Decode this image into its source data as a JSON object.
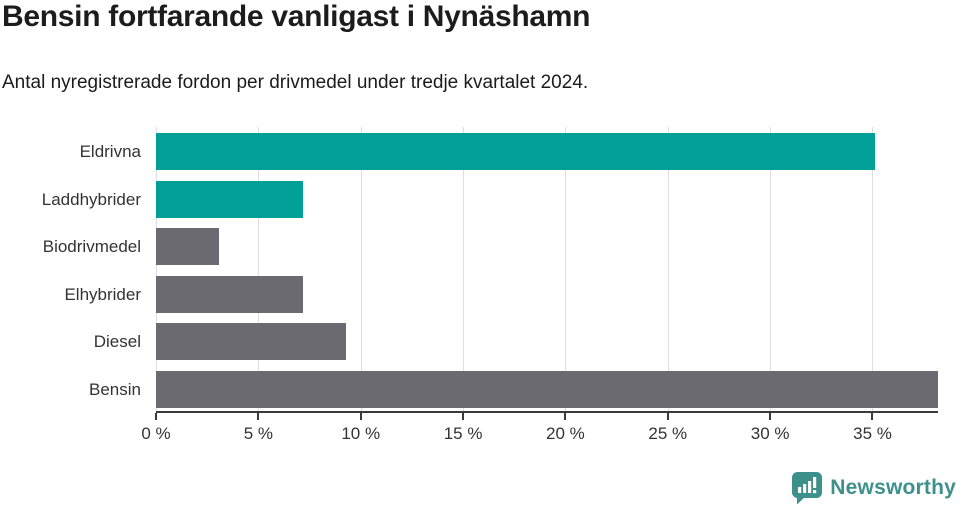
{
  "header": {
    "title": "Bensin fortfarande vanligast i Nynäshamn",
    "subtitle": "Antal nyregistrerade fordon per drivmedel under tredje kvartalet 2024."
  },
  "chart_data": {
    "type": "bar",
    "orientation": "horizontal",
    "title": "Bensin fortfarande vanligast i Nynäshamn",
    "subtitle": "Antal nyregistrerade fordon per drivmedel under tredje kvartalet 2024.",
    "categories": [
      "Eldrivna",
      "Laddhybrider",
      "Biodrivmedel",
      "Elhybrider",
      "Diesel",
      "Bensin"
    ],
    "values": [
      35.1,
      7.2,
      3.1,
      7.2,
      9.3,
      38.2
    ],
    "unit": "%",
    "bar_colors": [
      "#00a099",
      "#00a099",
      "#6b6a70",
      "#6b6a70",
      "#6b6a70",
      "#6b6a70"
    ],
    "xlim": [
      0,
      38.2
    ],
    "x_ticks": [
      0,
      5,
      10,
      15,
      20,
      25,
      30,
      35
    ],
    "x_tick_labels": [
      "0 %",
      "5 %",
      "10 %",
      "15 %",
      "20 %",
      "25 %",
      "30 %",
      "35 %"
    ],
    "grid": "vertical",
    "legend": "none"
  },
  "footer": {
    "brand": "Newsworthy"
  },
  "colors": {
    "accent_teal": "#00a099",
    "neutral_gray": "#6b6a70",
    "logo_teal": "#3e918b"
  }
}
